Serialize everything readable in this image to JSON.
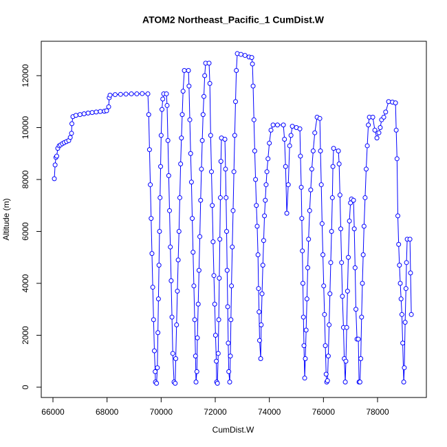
{
  "chart_data": {
    "type": "scatter-line",
    "title": "ATOM2 Northeast_Pacific_1 CumDist.W",
    "x_label": "CumDist.W",
    "y_label": "Altitude (m)",
    "color": "#0000ff",
    "x": [
      66051,
      66080,
      66110,
      66140,
      66178,
      66230,
      66280,
      66350,
      66420,
      66500,
      66585,
      66640,
      66687,
      66700,
      66737,
      66850,
      67000,
      67150,
      67300,
      67450,
      67600,
      67750,
      67900,
      67984,
      68060,
      68080,
      68111,
      68300,
      68500,
      68700,
      68900,
      69100,
      69300,
      69509,
      69540,
      69570,
      69600,
      69630,
      69660,
      69690,
      69720,
      69750,
      69780,
      69789,
      69830,
      69860,
      69880,
      69900,
      69920,
      69940,
      69960,
      69980,
      70000,
      70030,
      70060,
      70094,
      70196,
      70220,
      70250,
      70280,
      70310,
      70340,
      70370,
      70400,
      70430,
      70476,
      70520,
      70540,
      70570,
      70600,
      70630,
      70660,
      70690,
      70720,
      70750,
      70780,
      70810,
      70857,
      71010,
      71030,
      71060,
      71090,
      71120,
      71150,
      71180,
      71210,
      71240,
      71270,
      71289,
      71320,
      71340,
      71370,
      71400,
      71430,
      71460,
      71490,
      71520,
      71550,
      71580,
      71610,
      71645,
      71772,
      71800,
      71830,
      71860,
      71890,
      71920,
      71950,
      71980,
      72010,
      72040,
      72052,
      72080,
      72110,
      72130,
      72150,
      72170,
      72190,
      72210,
      72230,
      72357,
      72380,
      72400,
      72420,
      72440,
      72460,
      72480,
      72500,
      72535,
      72560,
      72580,
      72600,
      72630,
      72660,
      72690,
      72720,
      72750,
      72780,
      72815,
      72950,
      73100,
      73250,
      73349,
      73375,
      73400,
      73430,
      73460,
      73490,
      73520,
      73550,
      73580,
      73600,
      73620,
      73640,
      73680,
      73700,
      73730,
      73760,
      73790,
      73820,
      73850,
      73880,
      73910,
      73950,
      74000,
      74060,
      74138,
      74300,
      74519,
      74560,
      74600,
      74646,
      74700,
      74750,
      74800,
      74850,
      75000,
      75129,
      75150,
      75180,
      75200,
      75220,
      75240,
      75260,
      75280,
      75307,
      75330,
      75360,
      75390,
      75420,
      75450,
      75490,
      75530,
      75570,
      75620,
      75680,
      75765,
      75867,
      75890,
      75920,
      75950,
      75980,
      76010,
      76040,
      76070,
      76100,
      76121,
      76150,
      76180,
      76210,
      76240,
      76270,
      76300,
      76330,
      76350,
      76375,
      76553,
      76580,
      76610,
      76640,
      76670,
      76700,
      76740,
      76770,
      76807,
      76830,
      76860,
      76890,
      76920,
      76960,
      77000,
      77036,
      77112,
      77140,
      77170,
      77200,
      77240,
      77290,
      77316,
      77350,
      77380,
      77410,
      77440,
      77470,
      77500,
      77540,
      77580,
      77620,
      77660,
      77697,
      77824,
      77900,
      77977,
      78050,
      78100,
      78150,
      78231,
      78300,
      78409,
      78550,
      78664,
      78690,
      78720,
      78750,
      78780,
      78810,
      78840,
      78870,
      78900,
      78930,
      78969,
      78990,
      79020,
      79050,
      79070,
      79096,
      79198,
      79220,
      79249
    ],
    "values": [
      8030,
      8560,
      8850,
      8900,
      9200,
      9300,
      9330,
      9380,
      9420,
      9460,
      9500,
      9620,
      9780,
      10150,
      10420,
      10470,
      10500,
      10530,
      10560,
      10580,
      10600,
      10620,
      10630,
      10650,
      10800,
      11150,
      11250,
      11270,
      11280,
      11290,
      11300,
      11300,
      11310,
      11300,
      10500,
      9150,
      7800,
      6500,
      5150,
      3850,
      2600,
      1400,
      600,
      200,
      150,
      750,
      2100,
      3400,
      4700,
      6000,
      7300,
      8500,
      9700,
      10700,
      11100,
      11300,
      11300,
      10850,
      9500,
      8150,
      6800,
      5400,
      4100,
      2700,
      1300,
      200,
      150,
      1100,
      2400,
      3700,
      4900,
      6000,
      7300,
      8600,
      9600,
      10500,
      11400,
      12200,
      12200,
      11600,
      10300,
      9000,
      7900,
      6500,
      5200,
      3900,
      2600,
      1200,
      200,
      600,
      1900,
      3200,
      4500,
      5800,
      7200,
      8400,
      9500,
      10500,
      11200,
      12000,
      12480,
      12480,
      11700,
      9700,
      8300,
      7000,
      5600,
      4300,
      3200,
      2000,
      1000,
      200,
      150,
      1300,
      2600,
      4200,
      5700,
      7300,
      8700,
      9600,
      9550,
      8400,
      7300,
      6000,
      4500,
      3100,
      1700,
      600,
      200,
      1200,
      2600,
      3900,
      5400,
      6800,
      8300,
      9700,
      11000,
      12200,
      12850,
      12820,
      12780,
      12720,
      12700,
      12450,
      11600,
      10300,
      9100,
      8000,
      7000,
      6200,
      5100,
      3800,
      2900,
      1800,
      1100,
      2400,
      3600,
      4700,
      5650,
      6600,
      7200,
      7800,
      8300,
      8800,
      9400,
      9900,
      10100,
      10100,
      10100,
      9550,
      8500,
      6700,
      7800,
      9300,
      9700,
      10050,
      10000,
      9950,
      8900,
      7700,
      6500,
      5250,
      4000,
      2700,
      1600,
      350,
      1100,
      2200,
      3400,
      4600,
      5700,
      6800,
      7600,
      8400,
      9100,
      9800,
      10400,
      10350,
      9100,
      7800,
      6300,
      5100,
      3900,
      2800,
      1600,
      500,
      200,
      250,
      1200,
      2400,
      3600,
      4800,
      6000,
      7300,
      8500,
      9200,
      9100,
      8600,
      7400,
      6100,
      4800,
      3500,
      2300,
      1100,
      200,
      1000,
      2300,
      3700,
      5000,
      6400,
      7100,
      7250,
      7200,
      6100,
      4600,
      3000,
      1850,
      1850,
      200,
      200,
      1100,
      2700,
      4000,
      5100,
      6200,
      7300,
      8400,
      9300,
      10100,
      10400,
      10400,
      9900,
      9600,
      9800,
      10000,
      10300,
      10400,
      10600,
      11000,
      10980,
      10950,
      9900,
      8800,
      6600,
      5500,
      4700,
      4000,
      3400,
      2800,
      1700,
      200,
      750,
      2500,
      3800,
      4800,
      5700,
      5700,
      4400,
      2800
    ],
    "xlim": [
      65568,
      79805
    ],
    "ylim": [
      -397,
      13325
    ],
    "xticks": [
      66000,
      68000,
      70000,
      72000,
      74000,
      76000,
      78000
    ],
    "yticks": [
      0,
      2000,
      4000,
      6000,
      8000,
      10000,
      12000
    ]
  }
}
